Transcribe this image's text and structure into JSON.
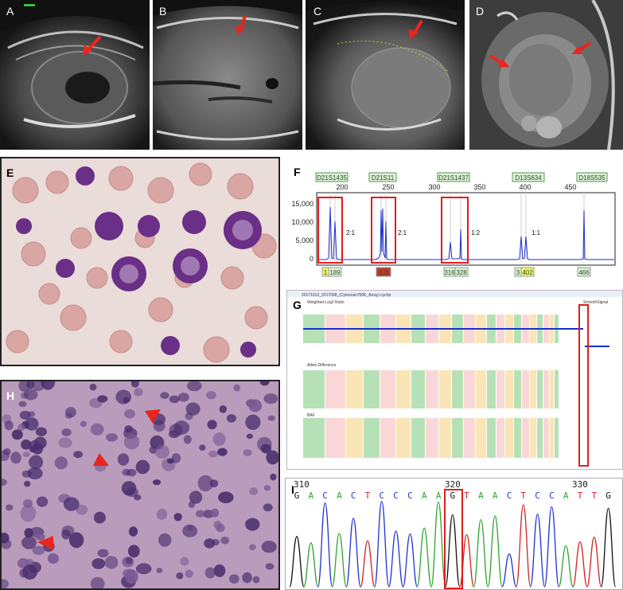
{
  "panels": {
    "A": {
      "label": "A"
    },
    "B": {
      "label": "B"
    },
    "C": {
      "label": "C"
    },
    "D": {
      "label": "D"
    },
    "E": {
      "label": "E"
    },
    "F": {
      "label": "F"
    },
    "G": {
      "label": "G"
    },
    "H": {
      "label": "H"
    },
    "I": {
      "label": "I"
    }
  },
  "colors": {
    "arrow": "#e8261e",
    "box": "#e31c1c",
    "trace": "#1f2fd1",
    "marker_fill": "#dff0d8",
    "marker_border": "#5a9a5a"
  },
  "chart_data": [
    {
      "type": "line",
      "panel": "F",
      "markers": [
        "D21S1435",
        "D21S11",
        "D21S1437",
        "D13S634",
        "D18S535"
      ],
      "x_ticks": [
        200,
        250,
        300,
        350,
        400,
        450
      ],
      "y_ticks": [
        "15,000",
        "10,000",
        "5,000",
        "0"
      ],
      "ylim": [
        0,
        17000
      ],
      "ratios": [
        "2:1",
        "2:1",
        "1:2",
        "1:1"
      ],
      "allele_labels": [
        "1",
        "189",
        "1 0",
        "316",
        "328",
        "3",
        "402",
        "466"
      ]
    },
    {
      "type": "line",
      "panel": "G",
      "header_text": "20171012_2017098_(Cytoscan750K_Array).cychp",
      "track_titles": [
        "Weighted Log2 Ratio",
        "Allele Difference",
        "BAF"
      ],
      "right_title": "SmoothSignal"
    },
    {
      "type": "line",
      "panel": "I",
      "position_ticks": [
        "310",
        "320",
        "330"
      ],
      "bases": [
        "G",
        "A",
        "C",
        "A",
        "C",
        "T",
        "C",
        "C",
        "C",
        "A",
        "A",
        "G",
        "T",
        "A",
        "A",
        "C",
        "T",
        "C",
        "C",
        "A",
        "T",
        "T",
        "G"
      ]
    }
  ]
}
